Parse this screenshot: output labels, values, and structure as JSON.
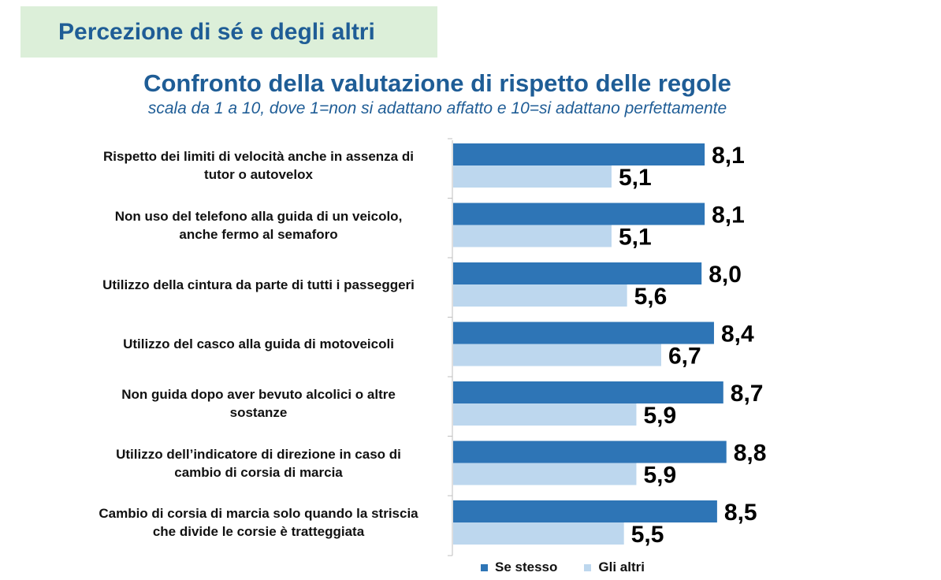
{
  "header": {
    "title": "Percezione di sé e degli altri"
  },
  "chart_data": {
    "type": "bar",
    "orientation": "horizontal",
    "title": "Confronto della valutazione di rispetto delle regole",
    "subtitle": "scala da 1 a 10, dove 1=non si adattano affatto e 10=si adattano perfettamente",
    "categories": [
      [
        "Rispetto dei limiti di velocità anche in assenza di",
        "tutor o autovelox"
      ],
      [
        "Non uso del telefono  alla guida di un veicolo,",
        "anche fermo al semaforo"
      ],
      [
        "Utilizzo della cintura da parte di tutti i passeggeri"
      ],
      [
        "Utilizzo del casco alla guida di motoveicoli"
      ],
      [
        "Non guida dopo aver bevuto alcolici o altre",
        "sostanze"
      ],
      [
        "Utilizzo  dell’indicatore di direzione in caso di",
        "cambio di corsia  di marcia"
      ],
      [
        "Cambio di corsia di marcia solo quando la striscia",
        "che divide le corsie è tratteggiata"
      ]
    ],
    "series": [
      {
        "name": "Se stesso",
        "color": "#2e75b6",
        "values": [
          8.1,
          8.1,
          8.0,
          8.4,
          8.7,
          8.8,
          8.5
        ],
        "labels": [
          "8,1",
          "8,1",
          "8,0",
          "8,4",
          "8,7",
          "8,8",
          "8,5"
        ]
      },
      {
        "name": "Gli altri",
        "color": "#bdd7ee",
        "values": [
          5.1,
          5.1,
          5.6,
          6.7,
          5.9,
          5.9,
          5.5
        ],
        "labels": [
          "5,1",
          "5,1",
          "5,6",
          "6,7",
          "5,9",
          "5,9",
          "5,5"
        ]
      }
    ],
    "xlim": [
      0,
      10
    ],
    "grid": false,
    "legend": "bottom"
  }
}
